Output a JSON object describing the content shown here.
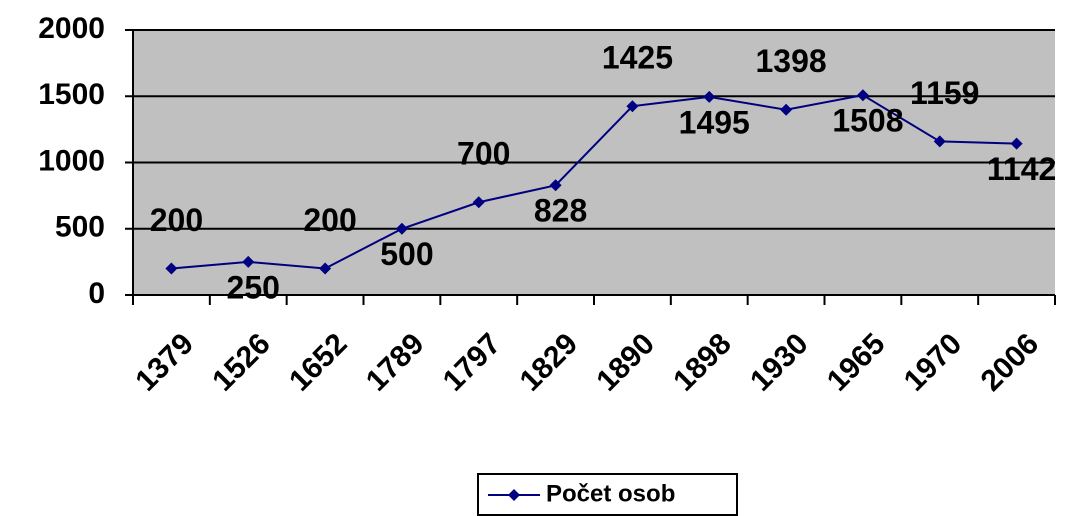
{
  "chart_data": {
    "type": "line",
    "categories": [
      "1379",
      "1526",
      "1652",
      "1789",
      "1797",
      "1829",
      "1890",
      "1898",
      "1930",
      "1965",
      "1970",
      "2006"
    ],
    "series": [
      {
        "name": "Počet osob",
        "color": "#000080",
        "values": [
          200,
          250,
          200,
          500,
          700,
          828,
          1425,
          1495,
          1398,
          1508,
          1159,
          1142
        ]
      }
    ],
    "ylim": [
      0,
      2000
    ],
    "yticks": [
      0,
      500,
      1000,
      1500,
      2000
    ],
    "grid": true,
    "legend": "bottom",
    "background": "#c0c0c0"
  }
}
